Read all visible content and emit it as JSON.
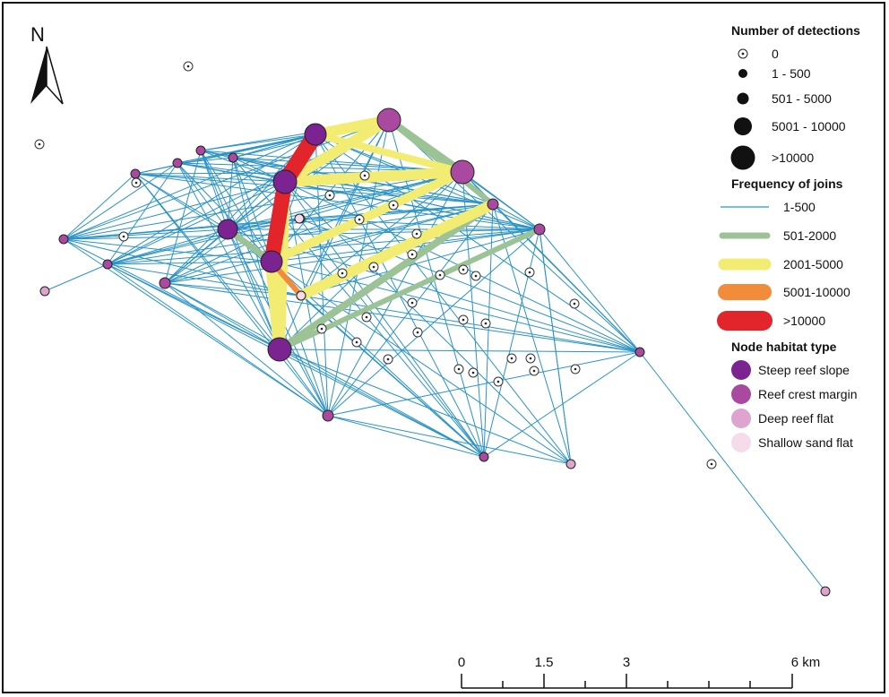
{
  "north_label": "N",
  "colors": {
    "join_1_500": "#2b93c6",
    "join_501_2000": "#9cc396",
    "join_2001_5000": "#f2ec72",
    "join_5001_10000": "#f28c3a",
    "join_over_10000": "#e2252b",
    "steep_reef_slope": "#7b2491",
    "reef_crest_margin": "#a94aa0",
    "deep_reef_flat": "#dfa3cf",
    "shallow_sand_flat": "#f5dcea"
  },
  "legend": {
    "detections_title": "Number of detections",
    "detections": [
      "0",
      "1 - 500",
      "501 - 5000",
      "5001 - 10000",
      ">10000"
    ],
    "joins_title": "Frequency of joins",
    "joins": [
      "1-500",
      "501-2000",
      "2001-5000",
      "5001-10000",
      ">10000"
    ],
    "habitat_title": "Node habitat type",
    "habitats": [
      "Steep reef slope",
      "Reef crest margin",
      "Deep reef flat",
      "Shallow sand flat"
    ]
  },
  "scale_bar": {
    "labels": [
      "0",
      "1.5",
      "3",
      "6 km"
    ]
  }
}
